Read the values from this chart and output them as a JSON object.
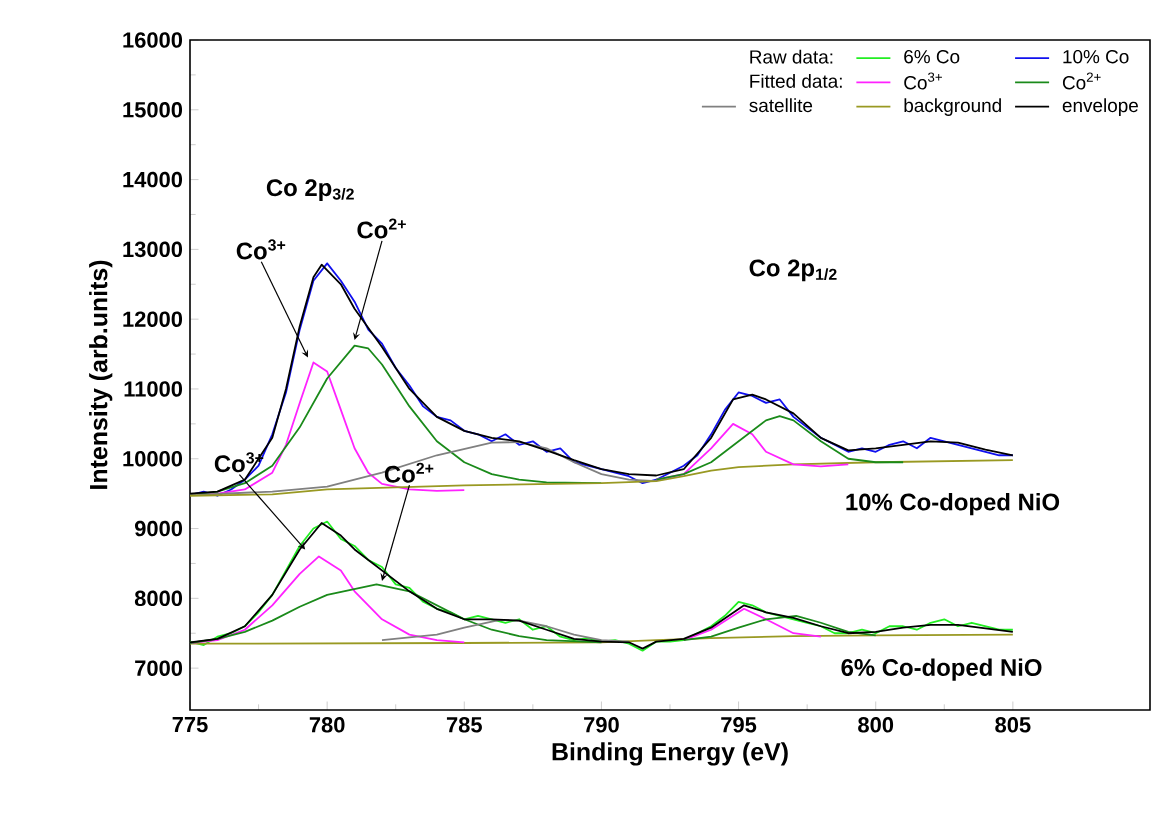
{
  "chart_data": {
    "type": "line",
    "xlabel": "Binding Energy (eV)",
    "ylabel": "Intensity (arb.units)",
    "xlim": [
      775,
      810
    ],
    "ylim": [
      6400,
      16000
    ],
    "xticks": [
      775,
      780,
      785,
      790,
      795,
      800,
      805
    ],
    "yticks": [
      7000,
      8000,
      9000,
      10000,
      11000,
      12000,
      13000,
      14000,
      15000,
      16000
    ],
    "grid": false,
    "legend": "top right",
    "marker": "none",
    "line_style": "solid",
    "annotations": [
      "Raw data:",
      "Fitted data:",
      "Co 2p$_{3/2}$",
      "Co 2p$_{1/2}$",
      {
        "text": "Co$^{3+}$",
        "x": 779.3,
        "y": 11450
      },
      {
        "text": "Co$^{2+}$",
        "x": 781,
        "y": 11700
      },
      {
        "text": "Co$^{3+}$",
        "x": 779.2,
        "y": 8700
      },
      {
        "text": "Co$^{2+}$",
        "x": 782,
        "y": 8250
      },
      "10% Co-doped NiO",
      "6% Co-doped NiO"
    ],
    "series": [
      {
        "name": "6% Co",
        "color": "#22ee22",
        "x": [
          775,
          775.5,
          776,
          776.5,
          777,
          777.5,
          778,
          778.5,
          779,
          779.5,
          780,
          780.5,
          781,
          781.5,
          782,
          782.5,
          783,
          783.5,
          784,
          784.5,
          785,
          785.5,
          786,
          786.5,
          787,
          787.5,
          788,
          788.5,
          789,
          789.5,
          790,
          790.5,
          791,
          791.5,
          792,
          792.5,
          793,
          793.5,
          794,
          794.5,
          795,
          795.5,
          796,
          796.5,
          797,
          797.5,
          798,
          798.5,
          799,
          799.5,
          800,
          800.5,
          801,
          801.5,
          802,
          802.5,
          803,
          803.5,
          804,
          804.5,
          805
        ],
        "values": [
          7380,
          7330,
          7450,
          7500,
          7600,
          7800,
          8050,
          8400,
          8750,
          9000,
          9100,
          8850,
          8750,
          8550,
          8450,
          8200,
          8150,
          7950,
          7850,
          7800,
          7700,
          7750,
          7700,
          7650,
          7700,
          7550,
          7600,
          7450,
          7400,
          7430,
          7380,
          7400,
          7350,
          7250,
          7380,
          7380,
          7400,
          7500,
          7600,
          7750,
          7950,
          7900,
          7800,
          7750,
          7700,
          7650,
          7600,
          7500,
          7500,
          7550,
          7500,
          7600,
          7600,
          7550,
          7650,
          7700,
          7600,
          7650,
          7600,
          7550,
          7550
        ]
      },
      {
        "name": "10% Co",
        "color": "#1010ee",
        "x": [
          775,
          775.5,
          776,
          776.5,
          777,
          777.5,
          778,
          778.5,
          779,
          779.5,
          780,
          780.5,
          781,
          781.5,
          782,
          782.5,
          783,
          783.5,
          784,
          784.5,
          785,
          785.5,
          786,
          786.5,
          787,
          787.5,
          788,
          788.5,
          789,
          789.5,
          790,
          790.5,
          791,
          791.5,
          792,
          792.5,
          793,
          793.5,
          794,
          794.5,
          795,
          795.5,
          796,
          796.5,
          797,
          797.5,
          798,
          798.5,
          799,
          799.5,
          800,
          800.5,
          801,
          801.5,
          802,
          802.5,
          803,
          803.5,
          804,
          804.5,
          805
        ],
        "values": [
          9480,
          9530,
          9470,
          9560,
          9700,
          9900,
          10350,
          10950,
          11850,
          12550,
          12800,
          12550,
          12250,
          11850,
          11650,
          11300,
          11050,
          10750,
          10600,
          10550,
          10400,
          10350,
          10250,
          10350,
          10200,
          10250,
          10100,
          10150,
          9950,
          9900,
          9850,
          9800,
          9750,
          9650,
          9700,
          9800,
          9900,
          10050,
          10350,
          10700,
          10950,
          10900,
          10800,
          10850,
          10600,
          10450,
          10300,
          10200,
          10100,
          10150,
          10100,
          10200,
          10250,
          10150,
          10300,
          10250,
          10200,
          10150,
          10100,
          10050,
          10050
        ]
      },
      {
        "name": "Co$^{3+}$",
        "color": "#ff22ff",
        "x": [
          775,
          776,
          777,
          778,
          778.5,
          779,
          779.5,
          780,
          780.5,
          781,
          781.5,
          782,
          783,
          784,
          785
        ],
        "values": [
          9480,
          9500,
          9560,
          9800,
          10200,
          10800,
          11380,
          11250,
          10700,
          10150,
          9800,
          9640,
          9560,
          9540,
          9550
        ]
      },
      {
        "name": "Co$^{2+}$",
        "color": "#1a8a1a",
        "x": [
          775,
          776,
          777,
          778,
          779,
          780,
          781,
          781.5,
          782,
          783,
          784,
          785,
          786,
          787,
          788,
          790
        ],
        "values": [
          9480,
          9530,
          9650,
          9900,
          10450,
          11150,
          11620,
          11580,
          11350,
          10750,
          10250,
          9950,
          9780,
          9700,
          9660,
          9650
        ]
      },
      {
        "name": "satellite",
        "color": "#808080",
        "x": [
          775,
          778,
          780,
          782,
          784,
          786,
          787,
          788,
          789,
          790,
          791,
          792
        ],
        "values": [
          9480,
          9530,
          9600,
          9800,
          10050,
          10230,
          10240,
          10150,
          9950,
          9780,
          9700,
          9680
        ]
      },
      {
        "name": "background",
        "color": "#999922",
        "x": [
          775,
          778,
          780,
          785,
          790,
          792,
          793,
          794,
          795,
          797,
          800,
          805
        ],
        "values": [
          9470,
          9490,
          9560,
          9620,
          9650,
          9680,
          9750,
          9830,
          9880,
          9920,
          9950,
          9980
        ]
      },
      {
        "name": "envelope",
        "color": "#000000",
        "x": [
          775,
          776,
          777,
          778,
          778.5,
          779,
          779.5,
          779.8,
          780.5,
          781,
          782,
          783,
          784,
          785,
          786,
          787,
          788,
          789,
          790,
          791,
          792,
          793,
          794,
          794.8,
          795.5,
          796,
          797,
          798,
          799,
          800,
          801,
          802,
          803,
          804,
          805
        ],
        "values": [
          9500,
          9530,
          9700,
          10300,
          11000,
          11900,
          12600,
          12780,
          12500,
          12150,
          11600,
          11000,
          10600,
          10400,
          10300,
          10250,
          10120,
          9980,
          9850,
          9780,
          9760,
          9850,
          10300,
          10850,
          10920,
          10850,
          10650,
          10300,
          10120,
          10150,
          10200,
          10250,
          10230,
          10130,
          10050
        ]
      },
      {
        "color": "#ff22ff",
        "x": [
          792,
          793,
          794,
          794.8,
          795.5,
          796,
          797,
          798,
          799
        ],
        "values": [
          9700,
          9780,
          10150,
          10500,
          10350,
          10100,
          9920,
          9890,
          9920
        ]
      },
      {
        "color": "#1a8a1a",
        "x": [
          792,
          793,
          794,
          795,
          796,
          796.5,
          797,
          798,
          799,
          800,
          801
        ],
        "values": [
          9700,
          9780,
          9950,
          10250,
          10550,
          10610,
          10550,
          10250,
          10000,
          9950,
          9950
        ]
      },
      {
        "color": "#999922",
        "x": [
          775,
          785,
          790,
          792,
          794,
          797,
          800,
          805
        ],
        "values": [
          7350,
          7360,
          7370,
          7400,
          7430,
          7460,
          7470,
          7480
        ]
      },
      {
        "color": "#ff22ff",
        "x": [
          775,
          776,
          777,
          778,
          779,
          779.7,
          780.5,
          781,
          782,
          783,
          784,
          785
        ],
        "values": [
          7360,
          7400,
          7550,
          7900,
          8350,
          8600,
          8400,
          8100,
          7700,
          7480,
          7400,
          7370
        ]
      },
      {
        "color": "#1a8a1a",
        "x": [
          775,
          776,
          777,
          778,
          779,
          780,
          781.8,
          783,
          784,
          785,
          786,
          787,
          788,
          790
        ],
        "values": [
          7360,
          7420,
          7520,
          7680,
          7880,
          8050,
          8200,
          8100,
          7900,
          7700,
          7550,
          7460,
          7400,
          7370
        ]
      },
      {
        "color": "#808080",
        "x": [
          782,
          784,
          785,
          786.3,
          787,
          788,
          789,
          790,
          791
        ],
        "values": [
          7400,
          7480,
          7580,
          7690,
          7680,
          7600,
          7480,
          7400,
          7380
        ]
      },
      {
        "color": "#ff22ff",
        "x": [
          793,
          794,
          795.2,
          796,
          797,
          798
        ],
        "values": [
          7400,
          7550,
          7850,
          7700,
          7500,
          7450
        ]
      },
      {
        "color": "#1a8a1a",
        "x": [
          793,
          794,
          795,
          796,
          797.1,
          798,
          799,
          800
        ],
        "values": [
          7400,
          7450,
          7580,
          7700,
          7750,
          7650,
          7520,
          7470
        ]
      },
      {
        "color": "#000000",
        "x": [
          775,
          776,
          777,
          778,
          779,
          779.8,
          780.5,
          781,
          782,
          783,
          784,
          785,
          786,
          787,
          788,
          789,
          790,
          791,
          791.5,
          792,
          793,
          794,
          795.2,
          796,
          797,
          798,
          799,
          800,
          801,
          802,
          803,
          804,
          805
        ],
        "values": [
          7370,
          7420,
          7600,
          8050,
          8700,
          9080,
          8900,
          8700,
          8400,
          8100,
          7850,
          7700,
          7700,
          7680,
          7550,
          7420,
          7380,
          7370,
          7280,
          7380,
          7420,
          7580,
          7900,
          7800,
          7720,
          7600,
          7500,
          7520,
          7580,
          7620,
          7620,
          7570,
          7520
        ]
      }
    ]
  }
}
